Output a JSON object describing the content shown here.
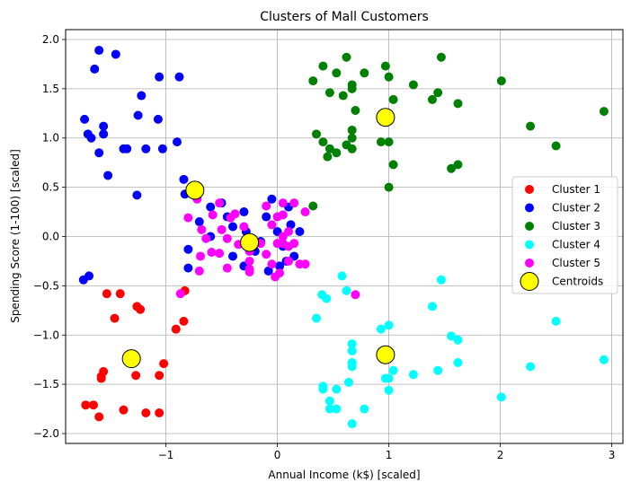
{
  "chart_data": {
    "type": "scatter",
    "title": "Clusters of Mall Customers",
    "xlabel": "Annual Income (k$) [scaled]",
    "ylabel": "Spending Score (1-100) [scaled]",
    "xlim": [
      -1.9,
      3.1
    ],
    "ylim": [
      -2.1,
      2.1
    ],
    "xticks": [
      -1,
      0,
      1,
      2,
      3
    ],
    "yticks": [
      -2.0,
      -1.5,
      -1.0,
      -0.5,
      0.0,
      0.5,
      1.0,
      1.5,
      2.0
    ],
    "xtick_labels": [
      "−1",
      "0",
      "1",
      "2",
      "3"
    ],
    "ytick_labels": [
      "−2.0",
      "−1.5",
      "−1.0",
      "−0.5",
      "0.0",
      "0.5",
      "1.0",
      "1.5",
      "2.0"
    ],
    "grid": true,
    "legend_position": "center-right",
    "series": [
      {
        "name": "Cluster 1",
        "color": "#ff0000",
        "points": [
          [
            -1.53,
            -0.58
          ],
          [
            -1.41,
            -0.58
          ],
          [
            -1.46,
            -0.83
          ],
          [
            -1.26,
            -0.71
          ],
          [
            -1.23,
            -0.74
          ],
          [
            -0.83,
            -0.55
          ],
          [
            -0.84,
            -0.86
          ],
          [
            -0.91,
            -0.94
          ],
          [
            -1.58,
            -1.42
          ],
          [
            -1.56,
            -1.37
          ],
          [
            -1.58,
            -1.44
          ],
          [
            -1.27,
            -1.41
          ],
          [
            -1.06,
            -1.41
          ],
          [
            -1.02,
            -1.29
          ],
          [
            -1.72,
            -1.71
          ],
          [
            -1.65,
            -1.71
          ],
          [
            -1.6,
            -1.83
          ],
          [
            -1.38,
            -1.76
          ],
          [
            -1.18,
            -1.79
          ],
          [
            -1.06,
            -1.79
          ]
        ]
      },
      {
        "name": "Cluster 2",
        "color": "#0000ff",
        "points": [
          [
            -1.6,
            1.89
          ],
          [
            -1.45,
            1.85
          ],
          [
            -1.64,
            1.7
          ],
          [
            -1.06,
            1.62
          ],
          [
            -0.88,
            1.62
          ],
          [
            -1.22,
            1.43
          ],
          [
            -1.73,
            1.19
          ],
          [
            -1.56,
            1.12
          ],
          [
            -1.25,
            1.23
          ],
          [
            -1.07,
            1.19
          ],
          [
            -1.7,
            1.04
          ],
          [
            -1.67,
            1.0
          ],
          [
            -1.56,
            1.04
          ],
          [
            -1.6,
            0.85
          ],
          [
            -1.38,
            0.89
          ],
          [
            -1.35,
            0.89
          ],
          [
            -1.18,
            0.89
          ],
          [
            -1.03,
            0.89
          ],
          [
            -0.9,
            0.96
          ],
          [
            -1.52,
            0.62
          ],
          [
            -1.26,
            0.42
          ],
          [
            -0.84,
            0.58
          ],
          [
            -0.83,
            0.43
          ],
          [
            -1.74,
            -0.44
          ],
          [
            -1.69,
            -0.4
          ],
          [
            -0.8,
            -0.13
          ],
          [
            -0.8,
            -0.32
          ],
          [
            -0.7,
            0.15
          ],
          [
            -0.6,
            0.0
          ],
          [
            -0.5,
            0.34
          ],
          [
            -0.4,
            0.1
          ],
          [
            -0.3,
            0.25
          ],
          [
            -0.28,
            0.05
          ],
          [
            -0.2,
            -0.15
          ],
          [
            -0.1,
            0.2
          ],
          [
            -0.05,
            0.38
          ],
          [
            0.0,
            0.05
          ],
          [
            0.05,
            -0.1
          ],
          [
            0.1,
            0.3
          ],
          [
            0.15,
            -0.2
          ],
          [
            -0.4,
            -0.2
          ],
          [
            -0.3,
            -0.3
          ],
          [
            -0.08,
            -0.35
          ],
          [
            0.08,
            -0.25
          ],
          [
            0.12,
            0.12
          ],
          [
            -0.6,
            0.3
          ],
          [
            -0.15,
            -0.05
          ],
          [
            0.02,
            -0.3
          ],
          [
            0.2,
            0.05
          ],
          [
            -0.45,
            0.2
          ]
        ]
      },
      {
        "name": "Cluster 3",
        "color": "#008000",
        "points": [
          [
            0.41,
            1.73
          ],
          [
            0.62,
            1.82
          ],
          [
            0.97,
            1.73
          ],
          [
            1.47,
            1.82
          ],
          [
            0.53,
            1.66
          ],
          [
            0.78,
            1.66
          ],
          [
            1.0,
            1.62
          ],
          [
            0.32,
            1.58
          ],
          [
            0.47,
            1.46
          ],
          [
            0.59,
            1.43
          ],
          [
            0.67,
            1.5
          ],
          [
            0.67,
            1.54
          ],
          [
            1.04,
            1.39
          ],
          [
            1.22,
            1.54
          ],
          [
            1.39,
            1.39
          ],
          [
            1.44,
            1.46
          ],
          [
            1.62,
            1.35
          ],
          [
            2.01,
            1.58
          ],
          [
            0.7,
            1.28
          ],
          [
            2.93,
            1.27
          ],
          [
            0.67,
            1.08
          ],
          [
            0.67,
            1.0
          ],
          [
            0.35,
            1.04
          ],
          [
            0.41,
            0.96
          ],
          [
            0.62,
            0.93
          ],
          [
            0.47,
            0.89
          ],
          [
            0.53,
            0.85
          ],
          [
            0.45,
            0.81
          ],
          [
            0.67,
            0.89
          ],
          [
            0.93,
            0.96
          ],
          [
            1.0,
            0.96
          ],
          [
            1.04,
            0.73
          ],
          [
            1.56,
            0.69
          ],
          [
            1.62,
            0.73
          ],
          [
            2.27,
            1.12
          ],
          [
            2.5,
            0.92
          ],
          [
            1.0,
            0.5
          ],
          [
            0.32,
            0.31
          ]
        ]
      },
      {
        "name": "Cluster 4",
        "color": "#00ffff",
        "points": [
          [
            0.58,
            -0.4
          ],
          [
            1.47,
            -0.44
          ],
          [
            0.4,
            -0.59
          ],
          [
            0.44,
            -0.63
          ],
          [
            0.62,
            -0.55
          ],
          [
            0.35,
            -0.83
          ],
          [
            0.93,
            -0.94
          ],
          [
            1.0,
            -0.9
          ],
          [
            1.39,
            -0.71
          ],
          [
            2.5,
            -0.86
          ],
          [
            0.67,
            -1.09
          ],
          [
            0.67,
            -1.16
          ],
          [
            1.56,
            -1.01
          ],
          [
            1.62,
            -1.05
          ],
          [
            0.67,
            -1.28
          ],
          [
            0.67,
            -1.32
          ],
          [
            1.04,
            -1.36
          ],
          [
            1.0,
            -1.44
          ],
          [
            1.22,
            -1.4
          ],
          [
            1.44,
            -1.36
          ],
          [
            1.62,
            -1.28
          ],
          [
            2.27,
            -1.32
          ],
          [
            2.93,
            -1.25
          ],
          [
            0.41,
            -1.52
          ],
          [
            0.41,
            -1.55
          ],
          [
            0.53,
            -1.55
          ],
          [
            0.64,
            -1.48
          ],
          [
            0.97,
            -1.44
          ],
          [
            1.0,
            -1.56
          ],
          [
            0.47,
            -1.67
          ],
          [
            0.47,
            -1.75
          ],
          [
            0.53,
            -1.75
          ],
          [
            0.78,
            -1.75
          ],
          [
            0.67,
            -1.9
          ],
          [
            2.01,
            -1.63
          ]
        ]
      },
      {
        "name": "Cluster 5",
        "color": "#ff00ff",
        "points": [
          [
            -0.72,
            0.38
          ],
          [
            -0.8,
            0.19
          ],
          [
            -0.68,
            0.07
          ],
          [
            -0.64,
            -0.02
          ],
          [
            -0.59,
            -0.16
          ],
          [
            -0.69,
            -0.2
          ],
          [
            -0.7,
            -0.35
          ],
          [
            -0.87,
            -0.58
          ],
          [
            -0.58,
            0.22
          ],
          [
            -0.52,
            0.34
          ],
          [
            -0.5,
            0.07
          ],
          [
            -0.45,
            -0.02
          ],
          [
            -0.42,
            0.19
          ],
          [
            -0.38,
            0.23
          ],
          [
            -0.45,
            -0.32
          ],
          [
            -0.52,
            -0.17
          ],
          [
            -0.35,
            -0.08
          ],
          [
            -0.25,
            -0.05
          ],
          [
            -0.25,
            -0.15
          ],
          [
            -0.25,
            -0.25
          ],
          [
            -0.25,
            -0.33
          ],
          [
            -0.25,
            -0.36
          ],
          [
            -0.1,
            0.31
          ],
          [
            -0.05,
            0.12
          ],
          [
            -0.1,
            -0.18
          ],
          [
            -0.05,
            -0.28
          ],
          [
            0.0,
            -0.07
          ],
          [
            -0.02,
            -0.41
          ],
          [
            0.02,
            -0.37
          ],
          [
            0.05,
            0.34
          ],
          [
            0.05,
            0.22
          ],
          [
            0.05,
            0.0
          ],
          [
            0.05,
            -0.07
          ],
          [
            0.1,
            0.05
          ],
          [
            0.1,
            -0.1
          ],
          [
            0.1,
            -0.25
          ],
          [
            0.15,
            0.34
          ],
          [
            0.15,
            -0.07
          ],
          [
            0.2,
            -0.28
          ],
          [
            0.25,
            -0.28
          ],
          [
            0.25,
            0.25
          ],
          [
            0.7,
            -0.59
          ],
          [
            -0.15,
            -0.07
          ],
          [
            0.0,
            0.2
          ],
          [
            -0.3,
            0.1
          ]
        ]
      }
    ],
    "centroids": {
      "name": "Centroids",
      "color": "#ffff00",
      "edge_color": "#000000",
      "points": [
        [
          -1.31,
          -1.24
        ],
        [
          -0.74,
          0.47
        ],
        [
          -0.25,
          -0.06
        ],
        [
          0.97,
          1.21
        ],
        [
          0.97,
          -1.2
        ]
      ]
    }
  }
}
